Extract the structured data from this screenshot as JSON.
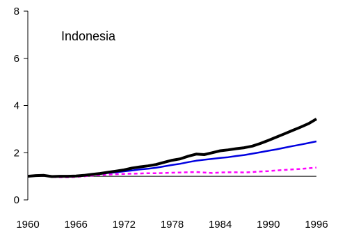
{
  "chart_data": {
    "type": "line",
    "title": "Indonesia",
    "xlabel": "",
    "ylabel": "",
    "xlim": [
      1960,
      1996
    ],
    "ylim": [
      0,
      8
    ],
    "x_ticks": [
      1960,
      1966,
      1972,
      1978,
      1984,
      1990,
      1996
    ],
    "y_ticks": [
      0,
      2,
      4,
      6,
      8
    ],
    "grid": false,
    "legend": "none",
    "reference_line": {
      "y": 1,
      "color": "#000000"
    },
    "x": [
      1960,
      1961,
      1962,
      1963,
      1964,
      1965,
      1966,
      1967,
      1968,
      1969,
      1970,
      1971,
      1972,
      1973,
      1974,
      1975,
      1976,
      1977,
      1978,
      1979,
      1980,
      1981,
      1982,
      1983,
      1984,
      1985,
      1986,
      1987,
      1988,
      1989,
      1990,
      1991,
      1992,
      1993,
      1994,
      1995,
      1996
    ],
    "series": [
      {
        "color": "#000000",
        "style": "solid-thick",
        "values": [
          1.0,
          1.03,
          1.04,
          0.99,
          1.0,
          1.0,
          1.01,
          1.04,
          1.08,
          1.12,
          1.17,
          1.22,
          1.27,
          1.35,
          1.4,
          1.44,
          1.5,
          1.59,
          1.68,
          1.74,
          1.85,
          1.94,
          1.92,
          2.0,
          2.08,
          2.12,
          2.17,
          2.21,
          2.28,
          2.39,
          2.52,
          2.66,
          2.8,
          2.94,
          3.08,
          3.23,
          3.43
        ]
      },
      {
        "color": "#0000e0",
        "style": "solid",
        "values": [
          1.0,
          1.02,
          1.03,
          1.0,
          1.0,
          1.0,
          1.02,
          1.04,
          1.07,
          1.1,
          1.14,
          1.17,
          1.21,
          1.25,
          1.29,
          1.32,
          1.36,
          1.42,
          1.48,
          1.53,
          1.6,
          1.66,
          1.7,
          1.74,
          1.78,
          1.81,
          1.86,
          1.9,
          1.96,
          2.02,
          2.08,
          2.14,
          2.21,
          2.28,
          2.34,
          2.41,
          2.48
        ]
      },
      {
        "color": "#ff00ff",
        "style": "dashed",
        "values": [
          1.0,
          1.02,
          1.02,
          0.97,
          0.96,
          0.96,
          0.97,
          1.0,
          1.03,
          1.05,
          1.07,
          1.09,
          1.1,
          1.11,
          1.12,
          1.13,
          1.13,
          1.14,
          1.15,
          1.16,
          1.17,
          1.18,
          1.16,
          1.14,
          1.16,
          1.17,
          1.17,
          1.16,
          1.18,
          1.2,
          1.22,
          1.25,
          1.27,
          1.29,
          1.31,
          1.34,
          1.37
        ]
      }
    ]
  }
}
